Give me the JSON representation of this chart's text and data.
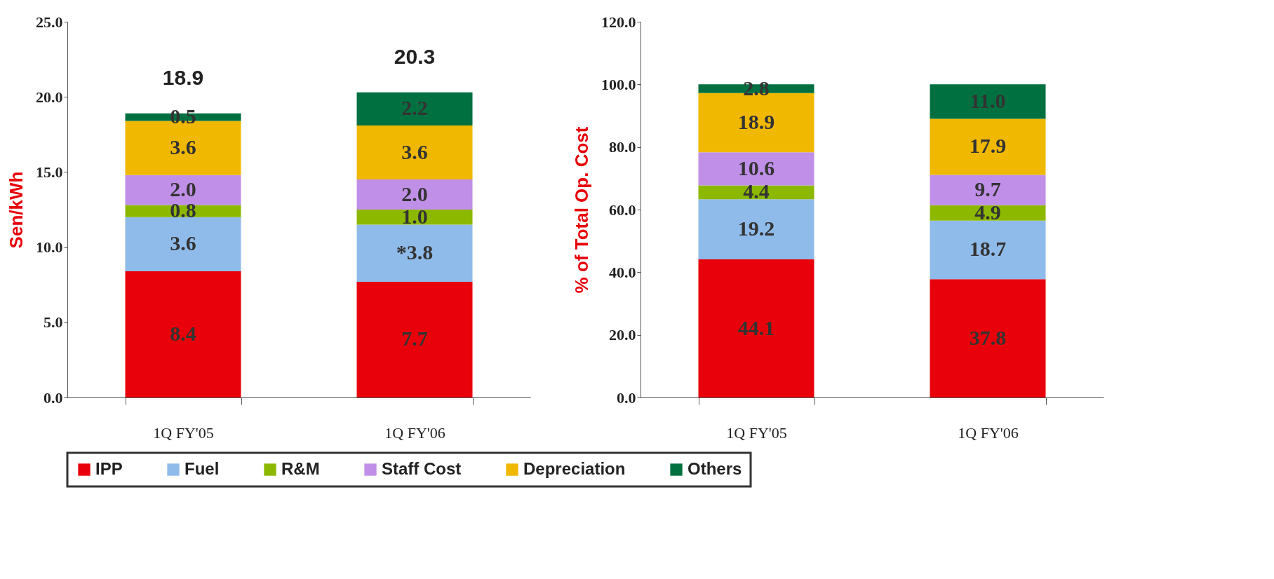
{
  "chart_data": [
    {
      "type": "bar",
      "stacked": true,
      "ylabel": "Sen/kWh",
      "categories": [
        "1Q FY'05",
        "1Q FY'06"
      ],
      "ylim": [
        0,
        25
      ],
      "yticks": [
        {
          "value": 0,
          "label": "0.0"
        },
        {
          "value": 5,
          "label": "5.0"
        },
        {
          "value": 10,
          "label": "10.0"
        },
        {
          "value": 15,
          "label": "15.0"
        },
        {
          "value": 20,
          "label": "20.0"
        },
        {
          "value": 25,
          "label": "25.0"
        }
      ],
      "grid": false,
      "legend": "bottom",
      "totals": [
        "18.9",
        "20.3"
      ],
      "series": [
        {
          "name": "IPP",
          "color": "#e8000a",
          "values": [
            8.4,
            7.7
          ],
          "value_labels": [
            "8.4",
            "7.7"
          ]
        },
        {
          "name": "Fuel",
          "color": "#8fbbea",
          "values": [
            3.6,
            3.8
          ],
          "value_labels": [
            "3.6",
            "*3.8"
          ]
        },
        {
          "name": "R&M",
          "color": "#8db800",
          "values": [
            0.8,
            1.0
          ],
          "value_labels": [
            "0.8",
            "1.0"
          ]
        },
        {
          "name": "Staff Cost",
          "color": "#c090e8",
          "values": [
            2.0,
            2.0
          ],
          "value_labels": [
            "2.0",
            "2.0"
          ]
        },
        {
          "name": "Depreciation",
          "color": "#f0b800",
          "values": [
            3.6,
            3.6
          ],
          "value_labels": [
            "3.6",
            "3.6"
          ]
        },
        {
          "name": "Others",
          "color": "#007040",
          "values": [
            0.5,
            2.2
          ],
          "value_labels": [
            "0.5",
            "2.2"
          ]
        }
      ]
    },
    {
      "type": "bar",
      "stacked": true,
      "ylabel": "% of Total Op. Cost",
      "categories": [
        "1Q FY'05",
        "1Q FY'06"
      ],
      "ylim": [
        0,
        120
      ],
      "yticks": [
        {
          "value": 0,
          "label": "0.0"
        },
        {
          "value": 20,
          "label": "20.0"
        },
        {
          "value": 40,
          "label": "40.0"
        },
        {
          "value": 60,
          "label": "60.0"
        },
        {
          "value": 80,
          "label": "80.0"
        },
        {
          "value": 100,
          "label": "100.0"
        },
        {
          "value": 120,
          "label": "120.0"
        }
      ],
      "grid": false,
      "legend": "bottom",
      "series": [
        {
          "name": "IPP",
          "color": "#e8000a",
          "values": [
            44.1,
            37.8
          ],
          "value_labels": [
            "44.1",
            "37.8"
          ]
        },
        {
          "name": "Fuel",
          "color": "#8fbbea",
          "values": [
            19.2,
            18.7
          ],
          "value_labels": [
            "19.2",
            "18.7"
          ]
        },
        {
          "name": "R&M",
          "color": "#8db800",
          "values": [
            4.4,
            4.9
          ],
          "value_labels": [
            "4.4",
            "4.9"
          ]
        },
        {
          "name": "Staff Cost",
          "color": "#c090e8",
          "values": [
            10.6,
            9.7
          ],
          "value_labels": [
            "10.6",
            "9.7"
          ]
        },
        {
          "name": "Depreciation",
          "color": "#f0b800",
          "values": [
            18.9,
            17.9
          ],
          "value_labels": [
            "18.9",
            "17.9"
          ]
        },
        {
          "name": "Others",
          "color": "#007040",
          "values": [
            2.8,
            11.0
          ],
          "value_labels": [
            "2.8",
            "11.0"
          ]
        }
      ]
    }
  ]
}
